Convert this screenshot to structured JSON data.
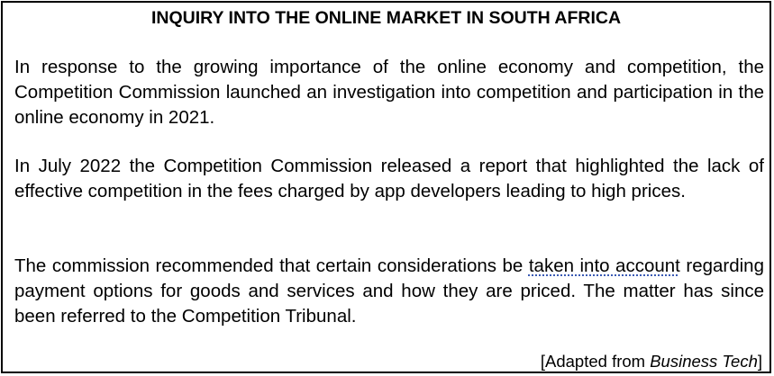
{
  "document": {
    "title": "INQUIRY INTO THE ONLINE MARKET IN SOUTH AFRICA",
    "paragraphs": [
      "In response to the growing importance of the online economy and competition, the Competition Commission launched an investigation into competition and participation in the online economy in 2021.",
      "In July 2022 the Competition Commission released a report that highlighted the lack of effective competition in the fees charged by app developers leading to high prices."
    ],
    "paragraph3": {
      "before": "The commission recommended that certain considerations be ",
      "flagged": "taken into account",
      "after": " regarding payment options for goods and services and how they are priced. The matter has since been referred to the Competition Tribunal."
    },
    "source": {
      "prefix": "[Adapted from ",
      "publication": "Business Tech",
      "suffix": "]"
    },
    "colors": {
      "border": "#000000",
      "spellcheck_underline": "#3b5bb5"
    }
  }
}
